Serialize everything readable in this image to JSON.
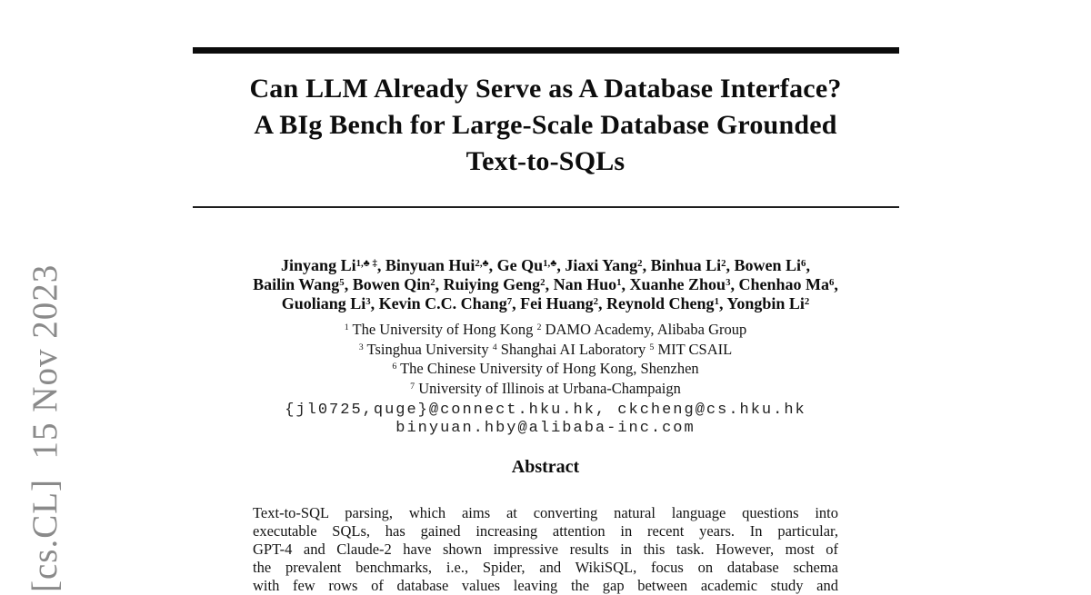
{
  "arxiv_stamp": {
    "text": "[cs.CL]  15 Nov 2023",
    "color": "#8a8a8a"
  },
  "title": {
    "lines": [
      "Can LLM Already Serve as A Database Interface?",
      "A BIg Bench for Large-Scale Database Grounded",
      "Text-to-SQLs"
    ]
  },
  "authors": {
    "separator": ", ",
    "lines": [
      {
        "suffix": ",",
        "items": [
          {
            "name": "Jinyang Li",
            "sup": "1,♣ ‡"
          },
          {
            "name": "Binyuan Hui",
            "sup": "2,♣"
          },
          {
            "name": "Ge Qu",
            "sup": "1,♣"
          },
          {
            "name": "Jiaxi Yang",
            "sup": "2"
          },
          {
            "name": "Binhua Li",
            "sup": "2"
          },
          {
            "name": "Bowen Li",
            "sup": "6"
          }
        ]
      },
      {
        "suffix": ",",
        "items": [
          {
            "name": "Bailin Wang",
            "sup": "5"
          },
          {
            "name": "Bowen Qin",
            "sup": "2"
          },
          {
            "name": "Ruiying Geng",
            "sup": "2"
          },
          {
            "name": "Nan Huo",
            "sup": "1"
          },
          {
            "name": "Xuanhe Zhou",
            "sup": "3"
          },
          {
            "name": "Chenhao Ma",
            "sup": "6"
          }
        ]
      },
      {
        "suffix": "",
        "items": [
          {
            "name": "Guoliang Li",
            "sup": "3"
          },
          {
            "name": "Kevin C.C. Chang",
            "sup": "7"
          },
          {
            "name": "Fei Huang",
            "sup": "2"
          },
          {
            "name": "Reynold Cheng",
            "sup": "1"
          },
          {
            "name": "Yongbin Li",
            "sup": "2"
          }
        ]
      }
    ]
  },
  "affiliations": {
    "lines": [
      [
        {
          "sup": "1",
          "text": "The University of Hong Kong"
        },
        {
          "sup": "2",
          "text": "DAMO Academy, Alibaba Group"
        }
      ],
      [
        {
          "sup": "3",
          "text": "Tsinghua University"
        },
        {
          "sup": "4",
          "text": "Shanghai AI Laboratory"
        },
        {
          "sup": "5",
          "text": "MIT CSAIL"
        }
      ],
      [
        {
          "sup": "6",
          "text": "The Chinese University of Hong Kong, Shenzhen"
        }
      ],
      [
        {
          "sup": "7",
          "text": "University of Illinois at Urbana-Champaign"
        }
      ]
    ]
  },
  "emails": {
    "line1": "{jl0725,quge}@connect.hku.hk, ckcheng@cs.hku.hk",
    "line2": "binyuan.hby@alibaba-inc.com"
  },
  "abstract": {
    "heading": "Abstract",
    "lines": [
      "Text-to-SQL parsing, which aims at converting natural language questions into",
      "executable SQLs, has gained increasing attention in recent years. In particular,",
      "GPT-4 and Claude-2 have shown impressive results in this task. However, most of",
      "the prevalent benchmarks, i.e., Spider, and WikiSQL, focus on database schema",
      "with few rows of database values leaving the gap between academic study and"
    ]
  }
}
